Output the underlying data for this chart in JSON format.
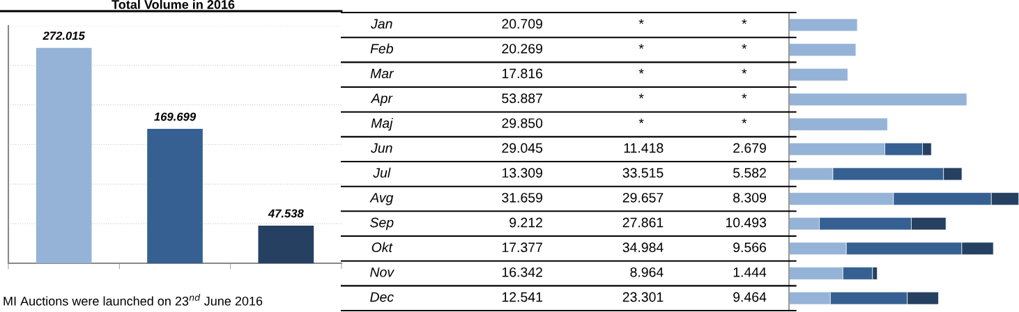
{
  "chart_data": [
    {
      "type": "bar",
      "title": "Total Volume in 2016",
      "categories": [
        null,
        null,
        null
      ],
      "values": [
        272.015,
        169.699,
        47.538
      ],
      "colors": [
        "#95b3d7",
        "#366092",
        "#254061"
      ],
      "data_labels": true,
      "ylim": [
        0,
        300
      ],
      "yticks": [
        {
          "value": 0,
          "label": null
        },
        {
          "value": 50,
          "label": null
        },
        {
          "value": 100,
          "label": null
        },
        {
          "value": 150,
          "label": null
        },
        {
          "value": 200,
          "label": null
        },
        {
          "value": 250,
          "label": null
        },
        {
          "value": 300,
          "label": null
        }
      ],
      "grid": "y",
      "annotations": [
        "MI Auctions were launched on 23$^{nd}$ June 2016"
      ]
    },
    {
      "type": "bar",
      "orientation": "horizontal",
      "stacked": true,
      "categories": [
        "Jan",
        "Feb",
        "Mar",
        "Apr",
        "Maj",
        "Jun",
        "Jul",
        "Avg",
        "Sep",
        "Okt",
        "Nov",
        "Dec"
      ],
      "xlim": [
        0,
        69.7
      ],
      "series": [
        {
          "color": "#95b3d7",
          "values": [
            20.709,
            20.269,
            17.816,
            53.887,
            29.85,
            29.045,
            13.309,
            31.659,
            9.212,
            17.377,
            16.342,
            12.541
          ],
          "value_labels": [
            "20.709",
            "20.269",
            "17.816",
            "53.887",
            "29.850",
            "29.045",
            "13.309",
            "31.659",
            "9.212",
            "17.377",
            "16.342",
            "12.541"
          ]
        },
        {
          "color": "#366092",
          "values": [
            null,
            null,
            null,
            null,
            null,
            11.418,
            33.515,
            29.657,
            27.861,
            34.984,
            8.964,
            23.301
          ],
          "value_labels": [
            "*",
            "*",
            "*",
            "*",
            "*",
            "11.418",
            "33.515",
            "29.657",
            "27.861",
            "34.984",
            "8.964",
            "23.301"
          ]
        },
        {
          "color": "#254061",
          "values": [
            null,
            null,
            null,
            null,
            null,
            2.679,
            5.582,
            8.309,
            10.493,
            9.566,
            1.444,
            9.464
          ],
          "value_labels": [
            "*",
            "*",
            "*",
            "*",
            "*",
            "2.679",
            "5.582",
            "8.309",
            "10.493",
            "9.566",
            "1.444",
            "9.464"
          ]
        }
      ]
    }
  ]
}
